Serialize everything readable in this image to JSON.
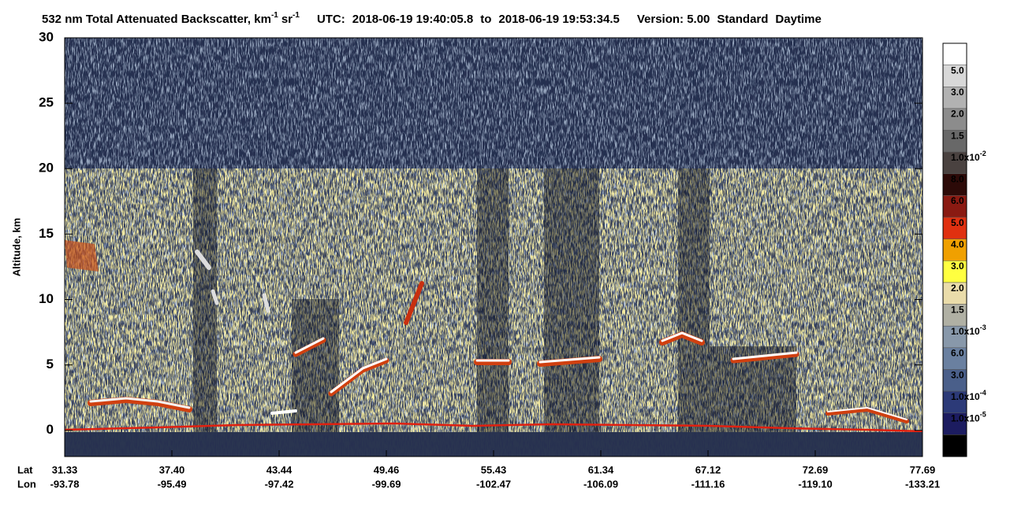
{
  "chart_data": {
    "type": "image",
    "title": {
      "text": "532 nm Total Attenuated Backscatter, km",
      "unit_exp": "-1",
      "unit2": "sr",
      "unit2_exp": "-1"
    },
    "utc_label": "UTC:",
    "start": "2018-06-19 19:40:05.8",
    "to": "to",
    "end": "2018-06-19 19:53:34.5",
    "version": "Version: 5.00",
    "product": "Standard",
    "mode": "Daytime",
    "ylabel": "Altitude, km",
    "ylim": [
      -2,
      30
    ],
    "yticks": [
      0,
      5,
      10,
      15,
      20,
      25,
      30
    ],
    "lat_label": "Lat",
    "lon_label": "Lon",
    "lat_ticks": [
      "31.33",
      "37.40",
      "43.44",
      "49.46",
      "55.43",
      "61.34",
      "67.12",
      "72.69",
      "77.69"
    ],
    "lon_ticks": [
      "-93.78",
      "-95.49",
      "-97.42",
      "-99.69",
      "-102.47",
      "-106.09",
      "-111.16",
      "-119.10",
      "-133.21"
    ],
    "colorbar_colors": [
      "#ffffff",
      "#d8d8d8",
      "#b2b2b2",
      "#8c8c8c",
      "#686868",
      "#4a4240",
      "#2c0a08",
      "#8a1a12",
      "#e03010",
      "#f0a000",
      "#ffff40",
      "#eadcaa",
      "#b0b0a4",
      "#8898aa",
      "#6a80a0",
      "#4a5f8a",
      "#2c3a78",
      "#1c1c60",
      "#000000"
    ],
    "colorbar_labels": [
      {
        "label": "5.0"
      },
      {
        "label": "3.0"
      },
      {
        "label": "2.0"
      },
      {
        "label": "1.5"
      },
      {
        "label": "1.0x10",
        "exp": "-2"
      },
      {
        "label": "8.0"
      },
      {
        "label": "6.0"
      },
      {
        "label": "5.0"
      },
      {
        "label": "4.0"
      },
      {
        "label": "3.0"
      },
      {
        "label": "2.0"
      },
      {
        "label": "1.5"
      },
      {
        "label": "1.0x10",
        "exp": "-3"
      },
      {
        "label": "6.0"
      },
      {
        "label": "3.0"
      },
      {
        "label": "1.0x10",
        "exp": "-4"
      },
      {
        "label": "1.0x10",
        "exp": "-5"
      }
    ]
  }
}
